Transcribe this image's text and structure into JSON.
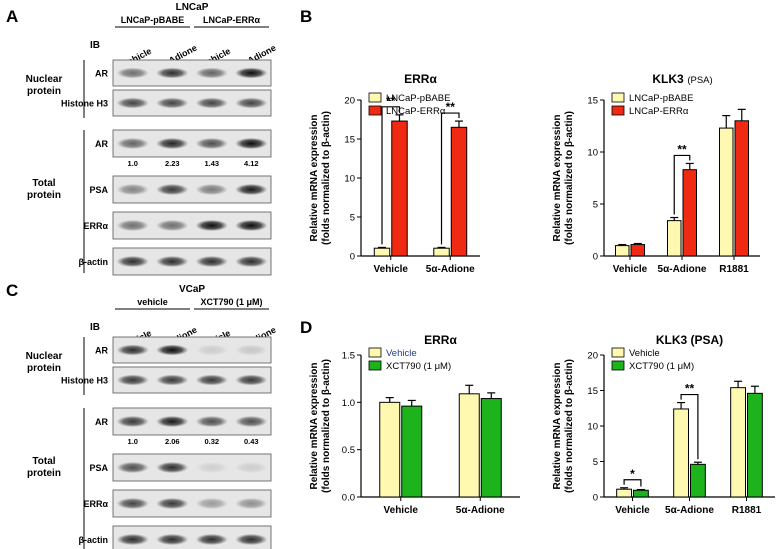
{
  "panels": {
    "A": "A",
    "B": "B",
    "C": "C",
    "D": "D"
  },
  "panelA": {
    "cell_line": "LNCaP",
    "groups": [
      "LNCaP-pBABE",
      "LNCaP-ERRα"
    ],
    "ib": "IB",
    "lanes": [
      "vehicle",
      "5α-Adione",
      "vehicle",
      "5α-Adione"
    ],
    "sections": [
      "Nuclear\nprotein",
      "Total\nprotein"
    ],
    "nuclear_blots": [
      "AR",
      "Histone H3"
    ],
    "total_blots": [
      "AR",
      "PSA",
      "ERRα",
      "β-actin"
    ],
    "ar_quant": [
      "1.0",
      "2.23",
      "1.43",
      "4.12"
    ]
  },
  "panelC": {
    "cell_line": "VCaP",
    "groups": [
      "vehicle",
      "XCT790 (1 μM)"
    ],
    "ib": "IB",
    "lanes": [
      "vehicle",
      "5α-Adione",
      "vehicle",
      "5α-Adione"
    ],
    "sections": [
      "Nuclear\nprotein",
      "Total\nprotein"
    ],
    "nuclear_blots": [
      "AR",
      "Histone H3"
    ],
    "total_blots": [
      "AR",
      "PSA",
      "ERRα",
      "β-actin"
    ],
    "ar_quant": [
      "1.0",
      "2.06",
      "0.32",
      "0.43"
    ]
  },
  "ylabel_line1": "Relative mRNA expression",
  "ylabel_line2": "(folds normalized to β-actin)",
  "chart_data": [
    {
      "id": "B1",
      "type": "bar",
      "title": "ERRα",
      "categories": [
        "Vehicle",
        "5α-Adione"
      ],
      "ylim": [
        0,
        20
      ],
      "yticks": [
        0,
        5,
        10,
        15,
        20
      ],
      "legend": "top-left",
      "series": [
        {
          "name": "LNCaP-pBABE",
          "color": "#fff8b0",
          "values": [
            1.0,
            1.0
          ],
          "errors": [
            0.1,
            0.1
          ]
        },
        {
          "name": "LNCaP-ERRα",
          "color": "#f02a12",
          "values": [
            17.3,
            16.5
          ],
          "errors": [
            0.8,
            0.8
          ]
        }
      ],
      "annotations": [
        {
          "text": "**",
          "category": 0
        },
        {
          "text": "**",
          "category": 1
        }
      ]
    },
    {
      "id": "B2",
      "type": "bar",
      "title": "KLK3",
      "title_suffix": "(PSA)",
      "categories": [
        "Vehicle",
        "5α-Adione",
        "R1881"
      ],
      "ylim": [
        0,
        15
      ],
      "yticks": [
        0,
        5,
        10,
        15
      ],
      "legend": "top-left",
      "series": [
        {
          "name": "LNCaP-pBABE",
          "color": "#fff8b0",
          "values": [
            1.0,
            3.4,
            12.3
          ],
          "errors": [
            0.1,
            0.3,
            1.2
          ]
        },
        {
          "name": "LNCaP-ERRα",
          "color": "#f02a12",
          "values": [
            1.1,
            8.3,
            13.0
          ],
          "errors": [
            0.1,
            0.6,
            1.1
          ]
        }
      ],
      "annotations": [
        {
          "text": "**",
          "category": 1
        }
      ]
    },
    {
      "id": "D1",
      "type": "bar",
      "title": "ERRα",
      "categories": [
        "Vehicle",
        "5α-Adione"
      ],
      "ylim": [
        0,
        1.5
      ],
      "yticks": [
        "0.0",
        "0.5",
        "1.0",
        "1.5"
      ],
      "legend": "top-left",
      "series": [
        {
          "name": "Vehicle",
          "color": "#fff8b0",
          "values": [
            1.0,
            1.09
          ],
          "errors": [
            0.05,
            0.09
          ]
        },
        {
          "name": "XCT790 (1 μM)",
          "color": "#1db31d",
          "values": [
            0.96,
            1.04
          ],
          "errors": [
            0.06,
            0.06
          ]
        }
      ],
      "annotations": []
    },
    {
      "id": "D2",
      "type": "bar",
      "title": "KLK3 (PSA)",
      "categories": [
        "Vehicle",
        "5α-Adione",
        "R1881"
      ],
      "ylim": [
        0,
        20
      ],
      "yticks": [
        0,
        5,
        10,
        15,
        20
      ],
      "legend": "top-left",
      "series": [
        {
          "name": "Vehicle",
          "color": "#fff8b0",
          "values": [
            1.1,
            12.4,
            15.4
          ],
          "errors": [
            0.2,
            0.9,
            0.9
          ]
        },
        {
          "name": "XCT790 (1 μM)",
          "color": "#1db31d",
          "values": [
            0.95,
            4.6,
            14.6
          ],
          "errors": [
            0.1,
            0.3,
            1.0
          ]
        }
      ],
      "annotations": [
        {
          "text": "*",
          "category": 0
        },
        {
          "text": "**",
          "category": 1
        }
      ]
    }
  ]
}
